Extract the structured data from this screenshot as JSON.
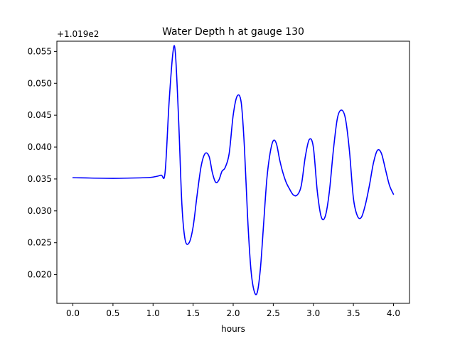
{
  "chart_data": {
    "type": "line",
    "title": "Water Depth h at gauge 130",
    "xlabel": "hours",
    "ylabel": "",
    "y_offset_label": "+1.019e2",
    "xlim": [
      -0.2,
      4.2
    ],
    "ylim": [
      0.0155,
      0.0566
    ],
    "x_ticks": [
      0.0,
      0.5,
      1.0,
      1.5,
      2.0,
      2.5,
      3.0,
      3.5,
      4.0
    ],
    "x_tick_labels": [
      "0.0",
      "0.5",
      "1.0",
      "1.5",
      "2.0",
      "2.5",
      "3.0",
      "3.5",
      "4.0"
    ],
    "y_ticks": [
      0.02,
      0.025,
      0.03,
      0.035,
      0.04,
      0.045,
      0.05,
      0.055
    ],
    "y_tick_labels": [
      "0.020",
      "0.025",
      "0.030",
      "0.035",
      "0.040",
      "0.045",
      "0.050",
      "0.055"
    ],
    "grid": false,
    "series": [
      {
        "color": "#0000ff",
        "x": [
          0.0,
          0.5,
          0.9,
          1.0,
          1.1,
          1.15,
          1.2,
          1.25,
          1.28,
          1.32,
          1.36,
          1.4,
          1.45,
          1.5,
          1.55,
          1.6,
          1.65,
          1.7,
          1.74,
          1.78,
          1.82,
          1.86,
          1.9,
          1.95,
          2.0,
          2.05,
          2.1,
          2.14,
          2.18,
          2.22,
          2.26,
          2.3,
          2.34,
          2.38,
          2.42,
          2.46,
          2.5,
          2.54,
          2.58,
          2.62,
          2.66,
          2.7,
          2.75,
          2.8,
          2.85,
          2.9,
          2.95,
          3.0,
          3.05,
          3.1,
          3.15,
          3.2,
          3.25,
          3.3,
          3.35,
          3.4,
          3.45,
          3.5,
          3.55,
          3.6,
          3.65,
          3.7,
          3.75,
          3.8,
          3.85,
          3.9,
          3.95,
          4.0
        ],
        "y": [
          0.0352,
          0.0351,
          0.0352,
          0.0353,
          0.0356,
          0.036,
          0.047,
          0.055,
          0.0545,
          0.044,
          0.031,
          0.0255,
          0.025,
          0.0275,
          0.0325,
          0.037,
          0.039,
          0.0385,
          0.036,
          0.0345,
          0.0348,
          0.0362,
          0.0368,
          0.039,
          0.045,
          0.048,
          0.047,
          0.04,
          0.029,
          0.021,
          0.0175,
          0.0172,
          0.021,
          0.028,
          0.035,
          0.039,
          0.041,
          0.0405,
          0.038,
          0.036,
          0.0345,
          0.0335,
          0.0325,
          0.0325,
          0.034,
          0.0385,
          0.0412,
          0.04,
          0.033,
          0.029,
          0.0292,
          0.033,
          0.0395,
          0.0445,
          0.0458,
          0.0445,
          0.0395,
          0.032,
          0.0292,
          0.029,
          0.031,
          0.034,
          0.0375,
          0.0395,
          0.039,
          0.0365,
          0.034,
          0.0326
        ]
      }
    ]
  }
}
